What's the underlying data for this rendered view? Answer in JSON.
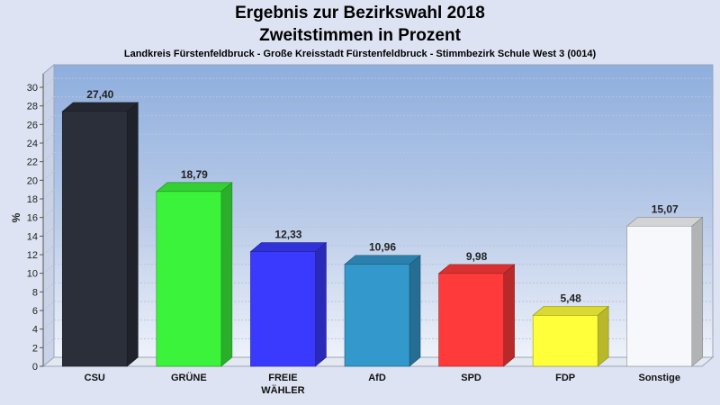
{
  "header": {
    "title": "Ergebnis zur Bezirkswahl 2018",
    "subtitle": "Zweitstimmen in Prozent",
    "caption": "Landkreis Fürstenfeldbruck - Große Kreisstadt Fürstenfeldbruck - Stimmbezirk Schule West 3 (0014)"
  },
  "chart_data": {
    "type": "bar",
    "title": "Ergebnis zur Bezirkswahl 2018",
    "subtitle": "Zweitstimmen in Prozent",
    "xlabel": "",
    "ylabel": "%",
    "ylim": [
      0,
      30
    ],
    "yticks": [
      0,
      2,
      4,
      6,
      8,
      10,
      12,
      14,
      16,
      18,
      20,
      22,
      24,
      26,
      28,
      30
    ],
    "grid": true,
    "categories": [
      "CSU",
      "GRÜNE",
      "FREIE WÄHLER",
      "AfD",
      "SPD",
      "FDP",
      "Sonstige"
    ],
    "category_lines": [
      [
        "CSU"
      ],
      [
        "GRÜNE"
      ],
      [
        "FREIE",
        "WÄHLER"
      ],
      [
        "AfD"
      ],
      [
        "SPD"
      ],
      [
        "FDP"
      ],
      [
        "Sonstige"
      ]
    ],
    "values": [
      27.4,
      18.79,
      12.33,
      10.96,
      9.98,
      5.48,
      15.07
    ],
    "value_labels": [
      "27,40",
      "18,79",
      "12,33",
      "10,96",
      "9,98",
      "5,48",
      "15,07"
    ],
    "colors": [
      "#2b2f3a",
      "#3cf33c",
      "#3a3aff",
      "#3398cc",
      "#ff3a3a",
      "#ffff3a",
      "#f6f8fb"
    ]
  }
}
